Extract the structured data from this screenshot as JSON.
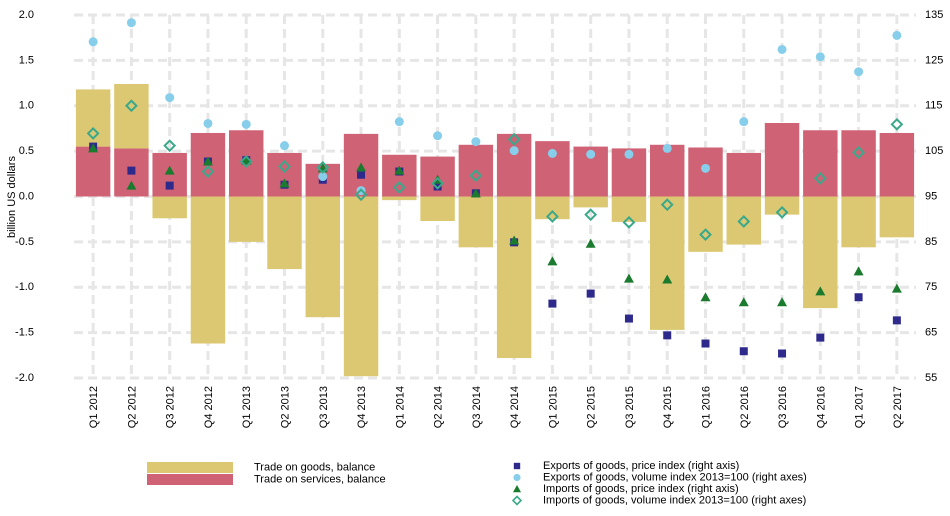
{
  "chart_data": {
    "type": "bar",
    "y_label": "billion US dollars",
    "categories": [
      "Q1 2012",
      "Q2 2012",
      "Q3 2012",
      "Q4 2012",
      "Q1 2013",
      "Q2 2013",
      "Q3 2013",
      "Q4 2013",
      "Q1 2014",
      "Q2 2014",
      "Q3 2014",
      "Q4 2014",
      "Q1 2015",
      "Q2 2015",
      "Q3 2015",
      "Q4 2015",
      "Q1 2016",
      "Q2 2016",
      "Q3 2016",
      "Q4 2016",
      "Q1 2017",
      "Q2 2017"
    ],
    "ylim": [
      -2,
      2
    ],
    "yticks": [
      {
        "value": 2,
        "label": "2.0"
      },
      1.5,
      {
        "value": 1,
        "label": "1.0"
      },
      0.5,
      {
        "value": 0,
        "label": "0.0"
      },
      -0.5,
      {
        "value": -1,
        "label": "-1.0"
      },
      -1.5,
      {
        "value": -2,
        "label": "-2.0"
      }
    ],
    "y2lim": [
      55,
      135
    ],
    "y2ticks": [
      135,
      125,
      115,
      105,
      95,
      85,
      75,
      65,
      55
    ],
    "grid": true,
    "series": [
      {
        "name": "Trade on services, balance",
        "type": "bar",
        "color": "#cf6375",
        "values": [
          0.55,
          0.53,
          0.48,
          0.7,
          0.73,
          0.48,
          0.36,
          0.69,
          0.46,
          0.44,
          0.57,
          0.69,
          0.61,
          0.55,
          0.53,
          0.57,
          0.54,
          0.48,
          0.81,
          0.73,
          0.73,
          0.7
        ]
      },
      {
        "name": "Trade on goods, balance",
        "type": "bar",
        "color": "#dcc872",
        "values": [
          0.63,
          0.71,
          -0.24,
          -1.62,
          -0.5,
          -0.8,
          -1.33,
          -1.98,
          -0.04,
          -0.27,
          -0.56,
          -1.78,
          -0.25,
          -0.12,
          -0.28,
          -1.47,
          -0.61,
          -0.53,
          -0.2,
          -1.23,
          -0.56,
          -0.45
        ]
      },
      {
        "name": "Exports of goods, price index (right axis)",
        "type": "scatter",
        "marker": "square",
        "axis": "y2",
        "color": "#2e2a8c",
        "values": [
          106.0,
          100.7,
          97.4,
          102.7,
          103.0,
          97.6,
          98.7,
          99.8,
          100.5,
          97.2,
          95.7,
          84.9,
          71.4,
          73.6,
          68.1,
          64.4,
          62.6,
          60.9,
          60.4,
          63.9,
          72.8,
          67.7
        ]
      },
      {
        "name": "Exports of goods, volume index 2013=100 (right axes)",
        "type": "scatter",
        "marker": "circle",
        "axis": "y2",
        "color": "#87ceeb",
        "values": [
          129.1,
          133.3,
          116.8,
          111.1,
          110.9,
          106.2,
          99.4,
          96.3,
          111.5,
          108.4,
          107.1,
          105.1,
          104.5,
          104.3,
          104.3,
          105.6,
          101.2,
          111.5,
          127.4,
          125.8,
          122.5,
          130.5
        ]
      },
      {
        "name": "Imports of goods, price index (right axis)",
        "type": "scatter",
        "marker": "triangle",
        "axis": "y2",
        "color": "#1a7a2e",
        "values": [
          105.6,
          97.4,
          100.7,
          102.7,
          102.9,
          97.9,
          101.2,
          101.4,
          100.7,
          98.7,
          95.7,
          85.3,
          80.7,
          84.6,
          76.9,
          76.7,
          72.8,
          71.7,
          71.7,
          74.1,
          78.5,
          74.7
        ]
      },
      {
        "name": "Imports of goods, volume index 2013=100 (right axes)",
        "type": "scatter",
        "marker": "diamond",
        "axis": "y2",
        "color": "#3aa88a",
        "values": [
          108.9,
          115.0,
          106.2,
          100.5,
          102.7,
          101.6,
          101.4,
          95.4,
          97.0,
          97.9,
          99.6,
          107.6,
          90.6,
          91.0,
          89.3,
          93.2,
          86.6,
          89.5,
          91.5,
          99.0,
          104.7,
          110.9
        ]
      }
    ]
  }
}
